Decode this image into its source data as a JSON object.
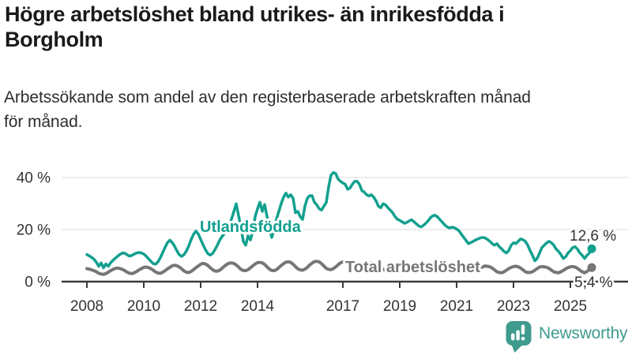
{
  "header": {
    "title_line1": "Högre arbetslöshet bland utrikes- än inrikesfödda i",
    "title_line2": "Borgholm",
    "subtitle_line1": "Arbetssökande som andel av den registerbaserade arbetskraften månad",
    "subtitle_line2": "för månad."
  },
  "footer": {
    "brand": "Newsworthy"
  },
  "colors": {
    "accent_teal": "#12a08f",
    "line_gray": "#767676",
    "axis": "#3a3a3a",
    "gridline": "#e2e2e2",
    "text_dark": "#333333",
    "logo_teal": "#3f9b8e"
  },
  "chart_data": {
    "type": "line",
    "unit": "%",
    "frequency": "monthly",
    "x_start": "2008-01",
    "x_end": "2025-10",
    "ylim": [
      0,
      45
    ],
    "grid": "horizontal",
    "y_ticks": [
      "0 %",
      "20 %",
      "40 %"
    ],
    "y_tick_values": [
      0,
      20,
      40
    ],
    "x_tick_years": [
      2008,
      2010,
      2012,
      2014,
      2017,
      2019,
      2021,
      2023,
      2025
    ],
    "series": [
      {
        "name": "Utlandsfödda",
        "color": "#12a08f",
        "end_label": "12,6 %",
        "end_value": 12.6,
        "values": [
          10.4,
          9.9,
          9.3,
          8.6,
          7.4,
          5.9,
          7.2,
          5.3,
          6.8,
          5.9,
          7.2,
          8.2,
          9.0,
          9.8,
          10.5,
          11.0,
          10.9,
          10.3,
          9.8,
          10.1,
          10.6,
          11.0,
          11.2,
          11.0,
          10.6,
          9.8,
          8.8,
          7.8,
          6.9,
          6.7,
          7.6,
          9.2,
          11.2,
          13.2,
          15.0,
          15.9,
          15.0,
          13.6,
          11.8,
          10.3,
          9.7,
          10.4,
          11.8,
          13.8,
          16.2,
          18.2,
          19.4,
          18.3,
          16.2,
          14.2,
          12.3,
          10.8,
          10.2,
          10.8,
          12.2,
          13.9,
          15.9,
          17.3,
          18.5,
          19.6,
          21.0,
          24.0,
          26.9,
          29.9,
          25.4,
          20.9,
          15.5,
          14.0,
          17.6,
          16.0,
          19.4,
          25.0,
          28.0,
          30.5,
          27.0,
          29.6,
          25.0,
          20.0,
          17.0,
          20.0,
          24.0,
          27.0,
          30.0,
          32.5,
          34.0,
          32.5,
          33.4,
          32.0,
          26.5,
          27.0,
          25.0,
          23.9,
          29.0,
          32.0,
          33.0,
          33.0,
          30.5,
          29.5,
          28.0,
          27.5,
          29.0,
          30.4,
          36.4,
          40.9,
          41.9,
          41.5,
          39.4,
          38.5,
          37.9,
          37.4,
          35.5,
          35.9,
          37.4,
          38.5,
          38.5,
          37.4,
          35.0,
          34.4,
          33.4,
          32.9,
          33.4,
          32.5,
          31.0,
          29.0,
          28.4,
          29.9,
          29.5,
          28.4,
          27.5,
          26.5,
          25.0,
          24.0,
          23.5,
          23.0,
          22.4,
          22.8,
          23.3,
          23.8,
          23.0,
          22.2,
          21.4,
          21.0,
          21.6,
          22.4,
          23.4,
          24.6,
          25.3,
          25.5,
          24.8,
          23.8,
          22.8,
          21.8,
          21.0,
          20.6,
          20.9,
          20.7,
          20.2,
          19.5,
          18.2,
          17.0,
          15.8,
          14.6,
          15.0,
          15.5,
          16.0,
          16.4,
          16.8,
          17.0,
          16.8,
          16.2,
          15.5,
          14.6,
          14.0,
          14.6,
          13.4,
          12.6,
          11.6,
          11.0,
          11.9,
          14.0,
          14.9,
          14.6,
          15.5,
          16.4,
          16.1,
          15.5,
          14.0,
          11.9,
          10.1,
          8.0,
          8.9,
          11.0,
          13.1,
          14.0,
          14.9,
          15.5,
          14.9,
          14.0,
          12.5,
          11.6,
          10.4,
          8.9,
          9.5,
          11.0,
          11.9,
          13.1,
          13.4,
          12.5,
          11.0,
          10.1,
          8.9,
          10.1,
          11.0,
          12.6
        ]
      },
      {
        "name": "Total arbetslöshet",
        "color": "#767676",
        "end_label": "5,4 %",
        "end_value": 5.4,
        "values": [
          5.0,
          4.8,
          4.5,
          4.2,
          3.8,
          3.2,
          2.9,
          2.8,
          3.1,
          3.6,
          4.2,
          4.7,
          5.1,
          5.2,
          5.0,
          4.7,
          4.2,
          3.6,
          3.2,
          3.1,
          3.4,
          3.9,
          4.5,
          5.0,
          5.5,
          5.6,
          5.4,
          5.0,
          4.4,
          3.7,
          3.3,
          3.2,
          3.6,
          4.2,
          4.9,
          5.5,
          6.1,
          6.3,
          6.1,
          5.6,
          4.9,
          4.1,
          3.6,
          3.5,
          3.9,
          4.6,
          5.4,
          6.0,
          6.7,
          7.0,
          6.8,
          6.2,
          5.4,
          4.6,
          4.1,
          4.0,
          4.4,
          5.1,
          5.9,
          6.6,
          7.1,
          7.2,
          7.0,
          6.4,
          5.6,
          4.7,
          4.3,
          4.2,
          4.6,
          5.3,
          6.1,
          6.8,
          7.3,
          7.4,
          7.2,
          6.6,
          5.7,
          4.8,
          4.3,
          4.2,
          4.6,
          5.4,
          6.2,
          6.9,
          7.5,
          7.6,
          7.4,
          6.7,
          5.8,
          4.9,
          4.5,
          4.4,
          4.8,
          5.5,
          6.4,
          7.1,
          7.7,
          7.8,
          7.6,
          6.9,
          6.0,
          5.1,
          4.7,
          4.6,
          5.0,
          5.7,
          6.5,
          7.2,
          7.6,
          7.6,
          7.4,
          6.8,
          5.9,
          5.0,
          4.6,
          4.5,
          4.9,
          5.6,
          6.3,
          7.0,
          7.3,
          7.2,
          7.0,
          6.4,
          5.6,
          4.7,
          4.3,
          4.2,
          4.6,
          5.2,
          5.9,
          6.5,
          6.8,
          6.8,
          6.6,
          6.1,
          5.3,
          4.5,
          4.1,
          4.0,
          4.4,
          5.0,
          5.7,
          6.3,
          6.6,
          6.6,
          6.4,
          6.0,
          5.4,
          4.7,
          4.4,
          4.3,
          4.6,
          5.1,
          5.7,
          6.2,
          6.3,
          6.2,
          6.0,
          5.5,
          4.8,
          4.1,
          3.8,
          3.7,
          4.0,
          4.6,
          5.2,
          5.7,
          6.0,
          5.9,
          5.7,
          5.2,
          4.5,
          3.8,
          3.5,
          3.4,
          3.8,
          4.4,
          5.0,
          5.5,
          5.8,
          5.9,
          5.7,
          5.2,
          4.5,
          3.8,
          3.5,
          3.5,
          3.8,
          4.4,
          5.0,
          5.6,
          5.8,
          5.7,
          5.5,
          5.1,
          4.4,
          3.8,
          3.5,
          3.4,
          3.8,
          4.3,
          4.9,
          5.4,
          5.7,
          5.8,
          5.6,
          5.1,
          4.4,
          3.8,
          3.4,
          3.9,
          4.7,
          5.4
        ]
      }
    ]
  }
}
